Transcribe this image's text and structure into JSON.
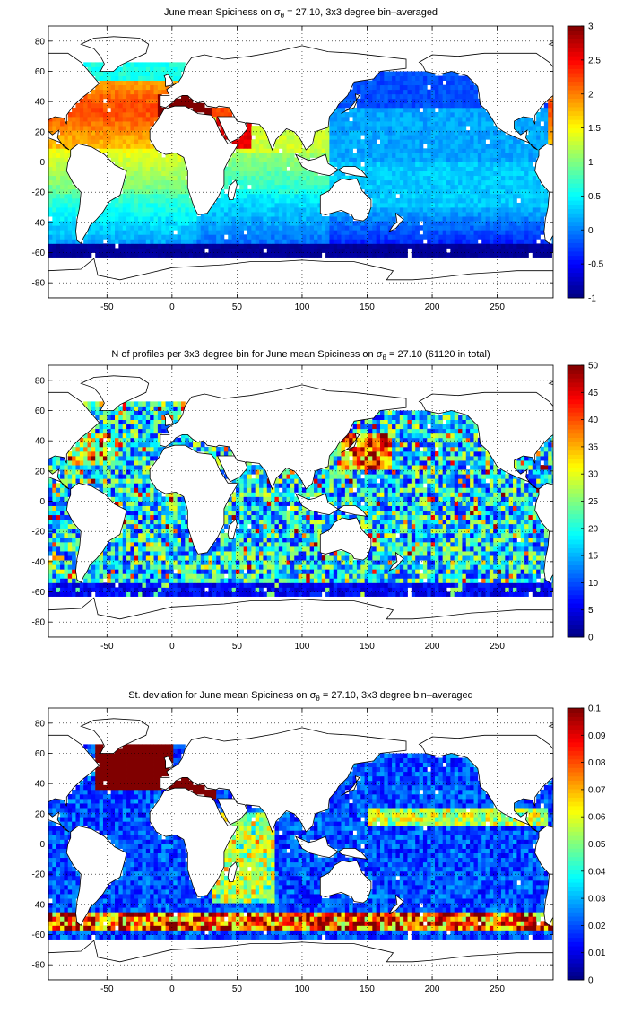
{
  "chart_data": [
    {
      "type": "heatmap",
      "title_parts": [
        "June mean Spiciness on ",
        "σ",
        "θ",
        " = 27.10, 3x3 degree bin–averaged"
      ],
      "xlim": [
        -95,
        293
      ],
      "ylim": [
        -90,
        90
      ],
      "xticks": [
        -50,
        0,
        50,
        100,
        150,
        200,
        250
      ],
      "yticks": [
        -80,
        -60,
        -40,
        -20,
        0,
        20,
        40,
        60,
        80
      ],
      "colorbar_ticks": [
        -1,
        -0.5,
        0,
        0.5,
        1,
        1.5,
        2,
        2.5,
        3
      ],
      "clim": [
        -1,
        3
      ],
      "grid": true,
      "colormap": "jet",
      "field": "spice"
    },
    {
      "type": "heatmap",
      "title_parts": [
        "N of profiles per 3x3 degree bin for June mean Spiciness on ",
        "σ",
        "θ",
        " = 27.10 (61120 in total)"
      ],
      "xlim": [
        -95,
        293
      ],
      "ylim": [
        -90,
        90
      ],
      "xticks": [
        -50,
        0,
        50,
        100,
        150,
        200,
        250
      ],
      "yticks": [
        -80,
        -60,
        -40,
        -20,
        0,
        20,
        40,
        60,
        80
      ],
      "colorbar_ticks": [
        0,
        5,
        10,
        15,
        20,
        25,
        30,
        35,
        40,
        45,
        50
      ],
      "clim": [
        0,
        50
      ],
      "grid": true,
      "colormap": "jet",
      "field": "count"
    },
    {
      "type": "heatmap",
      "title_parts": [
        "St. deviation for June mean Spiciness on ",
        "σ",
        "θ",
        " = 27.10, 3x3 degree bin–averaged"
      ],
      "xlim": [
        -95,
        293
      ],
      "ylim": [
        -90,
        90
      ],
      "xticks": [
        -50,
        0,
        50,
        100,
        150,
        200,
        250
      ],
      "yticks": [
        -80,
        -60,
        -40,
        -20,
        0,
        20,
        40,
        60,
        80
      ],
      "colorbar_ticks": [
        0,
        0.01,
        0.02,
        0.03,
        0.04,
        0.05,
        0.06,
        0.07,
        0.08,
        0.09,
        0.1
      ],
      "clim": [
        0,
        0.1
      ],
      "grid": true,
      "colormap": "jet",
      "field": "std"
    }
  ],
  "colors": {
    "land": "#ffffff",
    "coastline": "#000000",
    "grid": "#000000"
  }
}
